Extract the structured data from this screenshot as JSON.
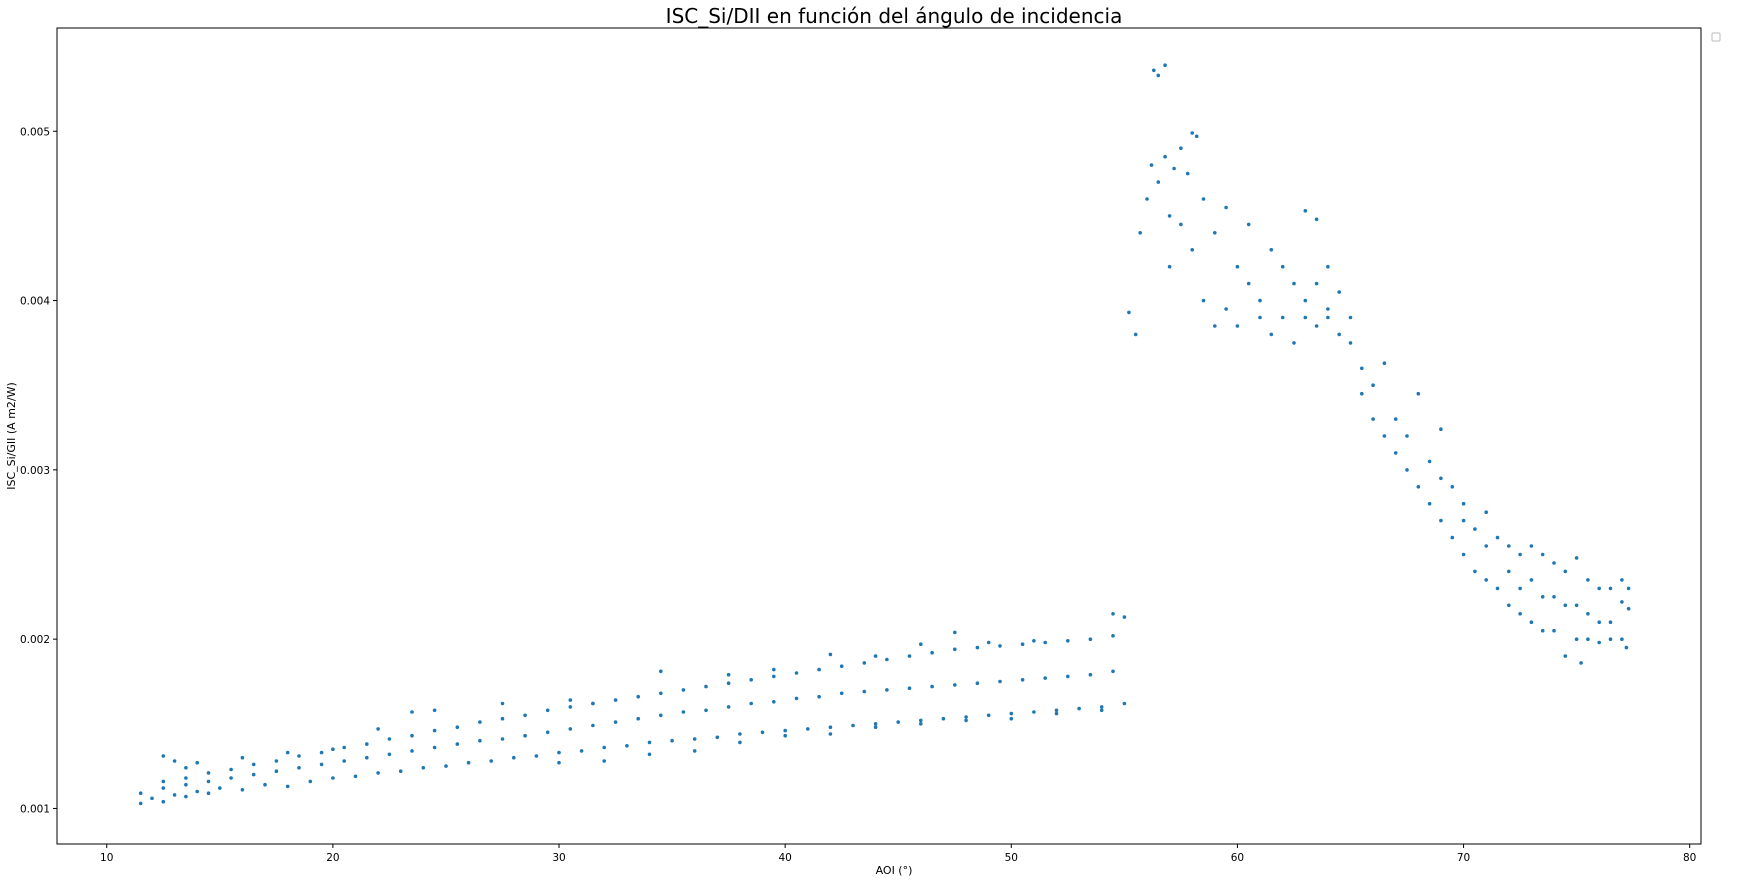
{
  "chart_data": {
    "type": "scatter",
    "title": "ISC_Si/DII en función del ángulo de incidencia",
    "xlabel": "AOI (°)",
    "ylabel": "ISC_Si/GII (A m2/W)",
    "xlim": [
      7.8,
      80.5
    ],
    "ylim": [
      0.00079,
      0.00561
    ],
    "xticks": [
      10,
      20,
      30,
      40,
      50,
      60,
      70,
      80
    ],
    "xtick_labels": [
      "10",
      "20",
      "30",
      "40",
      "50",
      "60",
      "70",
      "80"
    ],
    "yticks": [
      0.001,
      0.002,
      0.003,
      0.004,
      0.005
    ],
    "ytick_labels": [
      "0.001",
      "0.002",
      "0.003",
      "0.004",
      "0.005"
    ],
    "grid": false,
    "legend": "top-right (empty)",
    "marker_color": "#1f77b4",
    "series": [
      {
        "points": [
          [
            11.5,
            0.00103
          ],
          [
            12.0,
            0.00106
          ],
          [
            12.5,
            0.00104
          ],
          [
            13.0,
            0.00108
          ],
          [
            13.5,
            0.00107
          ],
          [
            14.0,
            0.0011
          ],
          [
            14.5,
            0.00109
          ],
          [
            15.0,
            0.00112
          ],
          [
            16.0,
            0.00111
          ],
          [
            17.0,
            0.00114
          ],
          [
            18.0,
            0.00113
          ],
          [
            19.0,
            0.00116
          ],
          [
            20.0,
            0.00118
          ],
          [
            21.0,
            0.00119
          ],
          [
            22.0,
            0.00121
          ],
          [
            23.0,
            0.00122
          ],
          [
            24.0,
            0.00124
          ],
          [
            25.0,
            0.00125
          ],
          [
            26.0,
            0.00127
          ],
          [
            27.0,
            0.00128
          ],
          [
            28.0,
            0.0013
          ],
          [
            29.0,
            0.00131
          ],
          [
            30.0,
            0.00133
          ],
          [
            31.0,
            0.00134
          ],
          [
            32.0,
            0.00136
          ],
          [
            33.0,
            0.00137
          ],
          [
            34.0,
            0.00139
          ],
          [
            35.0,
            0.0014
          ],
          [
            36.0,
            0.00141
          ],
          [
            37.0,
            0.00142
          ],
          [
            38.0,
            0.00144
          ],
          [
            39.0,
            0.00145
          ],
          [
            40.0,
            0.00146
          ],
          [
            41.0,
            0.00147
          ],
          [
            42.0,
            0.00148
          ],
          [
            43.0,
            0.00149
          ],
          [
            44.0,
            0.0015
          ],
          [
            45.0,
            0.00151
          ],
          [
            46.0,
            0.00152
          ],
          [
            47.0,
            0.00153
          ],
          [
            48.0,
            0.00154
          ],
          [
            49.0,
            0.00155
          ],
          [
            50.0,
            0.00156
          ],
          [
            51.0,
            0.00157
          ],
          [
            52.0,
            0.00158
          ],
          [
            53.0,
            0.00159
          ],
          [
            54.0,
            0.0016
          ],
          [
            55.0,
            0.00162
          ],
          [
            11.5,
            0.00109
          ],
          [
            12.5,
            0.00112
          ],
          [
            13.5,
            0.00114
          ],
          [
            14.5,
            0.00116
          ],
          [
            15.5,
            0.00118
          ],
          [
            16.5,
            0.0012
          ],
          [
            17.5,
            0.00122
          ],
          [
            18.5,
            0.00124
          ],
          [
            19.5,
            0.00126
          ],
          [
            20.5,
            0.00128
          ],
          [
            21.5,
            0.0013
          ],
          [
            22.5,
            0.00132
          ],
          [
            23.5,
            0.00134
          ],
          [
            24.5,
            0.00136
          ],
          [
            25.5,
            0.00138
          ],
          [
            26.5,
            0.0014
          ],
          [
            27.5,
            0.00141
          ],
          [
            28.5,
            0.00143
          ],
          [
            29.5,
            0.00145
          ],
          [
            30.5,
            0.00147
          ],
          [
            31.5,
            0.00149
          ],
          [
            32.5,
            0.00151
          ],
          [
            33.5,
            0.00153
          ],
          [
            34.5,
            0.00155
          ],
          [
            35.5,
            0.00157
          ],
          [
            36.5,
            0.00158
          ],
          [
            37.5,
            0.0016
          ],
          [
            38.5,
            0.00162
          ],
          [
            39.5,
            0.00163
          ],
          [
            40.5,
            0.00165
          ],
          [
            41.5,
            0.00166
          ],
          [
            42.5,
            0.00168
          ],
          [
            43.5,
            0.00169
          ],
          [
            44.5,
            0.0017
          ],
          [
            45.5,
            0.00171
          ],
          [
            46.5,
            0.00172
          ],
          [
            47.5,
            0.00173
          ],
          [
            48.5,
            0.00174
          ],
          [
            49.5,
            0.00175
          ],
          [
            50.5,
            0.00176
          ],
          [
            51.5,
            0.00177
          ],
          [
            52.5,
            0.00178
          ],
          [
            53.5,
            0.00179
          ],
          [
            54.5,
            0.00181
          ],
          [
            12.5,
            0.00116
          ],
          [
            13.5,
            0.00118
          ],
          [
            14.5,
            0.00121
          ],
          [
            15.5,
            0.00123
          ],
          [
            16.5,
            0.00126
          ],
          [
            17.5,
            0.00128
          ],
          [
            18.5,
            0.00131
          ],
          [
            19.5,
            0.00133
          ],
          [
            20.5,
            0.00136
          ],
          [
            21.5,
            0.00138
          ],
          [
            22.5,
            0.00141
          ],
          [
            23.5,
            0.00143
          ],
          [
            24.5,
            0.00146
          ],
          [
            25.5,
            0.00148
          ],
          [
            26.5,
            0.00151
          ],
          [
            27.5,
            0.00153
          ],
          [
            28.5,
            0.00155
          ],
          [
            29.5,
            0.00158
          ],
          [
            30.5,
            0.0016
          ],
          [
            31.5,
            0.00162
          ],
          [
            32.5,
            0.00164
          ],
          [
            33.5,
            0.00166
          ],
          [
            34.5,
            0.00168
          ],
          [
            35.5,
            0.0017
          ],
          [
            36.5,
            0.00172
          ],
          [
            37.5,
            0.00174
          ],
          [
            38.5,
            0.00176
          ],
          [
            39.5,
            0.00178
          ],
          [
            40.5,
            0.0018
          ],
          [
            41.5,
            0.00182
          ],
          [
            42.5,
            0.00184
          ],
          [
            43.5,
            0.00186
          ],
          [
            44.5,
            0.00188
          ],
          [
            45.5,
            0.0019
          ],
          [
            46.5,
            0.00192
          ],
          [
            47.5,
            0.00194
          ],
          [
            48.5,
            0.00195
          ],
          [
            49.5,
            0.00196
          ],
          [
            50.5,
            0.00197
          ],
          [
            51.5,
            0.00198
          ],
          [
            52.5,
            0.00199
          ],
          [
            53.5,
            0.002
          ],
          [
            54.5,
            0.00202
          ],
          [
            12.5,
            0.00131
          ],
          [
            13.0,
            0.00128
          ],
          [
            13.5,
            0.00124
          ],
          [
            14.0,
            0.00127
          ],
          [
            16.0,
            0.0013
          ],
          [
            18.0,
            0.00133
          ],
          [
            20.0,
            0.00135
          ],
          [
            22.0,
            0.00147
          ],
          [
            23.5,
            0.00157
          ],
          [
            24.5,
            0.00158
          ],
          [
            27.5,
            0.00162
          ],
          [
            30.5,
            0.00164
          ],
          [
            31.5,
            0.00162
          ],
          [
            34.5,
            0.00181
          ],
          [
            37.5,
            0.00179
          ],
          [
            39.5,
            0.00182
          ],
          [
            42.0,
            0.00191
          ],
          [
            44.0,
            0.0019
          ],
          [
            46.0,
            0.00197
          ],
          [
            47.5,
            0.00204
          ],
          [
            49.0,
            0.00198
          ],
          [
            51.0,
            0.00199
          ],
          [
            54.5,
            0.00215
          ],
          [
            55.0,
            0.00213
          ],
          [
            30.0,
            0.00127
          ],
          [
            32.0,
            0.00128
          ],
          [
            34.0,
            0.00132
          ],
          [
            36.0,
            0.00134
          ],
          [
            38.0,
            0.00139
          ],
          [
            40.0,
            0.00143
          ],
          [
            42.0,
            0.00144
          ],
          [
            44.0,
            0.00148
          ],
          [
            46.0,
            0.0015
          ],
          [
            48.0,
            0.00152
          ],
          [
            50.0,
            0.00153
          ],
          [
            52.0,
            0.00156
          ],
          [
            54.0,
            0.00158
          ],
          [
            55.2,
            0.00393
          ],
          [
            55.5,
            0.0038
          ],
          [
            55.7,
            0.0044
          ],
          [
            56.0,
            0.0046
          ],
          [
            56.3,
            0.00536
          ],
          [
            56.5,
            0.00533
          ],
          [
            56.8,
            0.00539
          ],
          [
            56.2,
            0.0048
          ],
          [
            56.5,
            0.0047
          ],
          [
            56.8,
            0.00485
          ],
          [
            57.0,
            0.0045
          ],
          [
            57.2,
            0.00478
          ],
          [
            57.5,
            0.0049
          ],
          [
            57.8,
            0.00475
          ],
          [
            58.0,
            0.00499
          ],
          [
            58.2,
            0.00497
          ],
          [
            57.0,
            0.0042
          ],
          [
            57.5,
            0.00445
          ],
          [
            58.0,
            0.0043
          ],
          [
            58.5,
            0.0046
          ],
          [
            59.0,
            0.0044
          ],
          [
            59.5,
            0.00455
          ],
          [
            60.0,
            0.0042
          ],
          [
            60.5,
            0.00445
          ],
          [
            58.5,
            0.004
          ],
          [
            59.0,
            0.00385
          ],
          [
            59.5,
            0.00395
          ],
          [
            60.0,
            0.00385
          ],
          [
            60.5,
            0.0041
          ],
          [
            61.0,
            0.004
          ],
          [
            61.5,
            0.0043
          ],
          [
            62.0,
            0.0042
          ],
          [
            61.0,
            0.0039
          ],
          [
            61.5,
            0.0038
          ],
          [
            62.0,
            0.0039
          ],
          [
            62.5,
            0.00375
          ],
          [
            63.0,
            0.0039
          ],
          [
            63.5,
            0.00385
          ],
          [
            64.0,
            0.0039
          ],
          [
            64.5,
            0.0038
          ],
          [
            62.5,
            0.0041
          ],
          [
            63.0,
            0.004
          ],
          [
            63.5,
            0.0041
          ],
          [
            64.0,
            0.00395
          ],
          [
            63.0,
            0.00453
          ],
          [
            63.5,
            0.00448
          ],
          [
            64.0,
            0.0042
          ],
          [
            64.5,
            0.00405
          ],
          [
            65.0,
            0.00375
          ],
          [
            65.0,
            0.0039
          ],
          [
            65.5,
            0.0036
          ],
          [
            65.5,
            0.00345
          ],
          [
            66.0,
            0.0035
          ],
          [
            66.0,
            0.0033
          ],
          [
            66.5,
            0.00363
          ],
          [
            66.5,
            0.0032
          ],
          [
            67.0,
            0.0033
          ],
          [
            67.0,
            0.0031
          ],
          [
            67.5,
            0.003
          ],
          [
            67.5,
            0.0032
          ],
          [
            68.0,
            0.00345
          ],
          [
            68.0,
            0.0029
          ],
          [
            68.5,
            0.00305
          ],
          [
            68.5,
            0.0028
          ],
          [
            69.0,
            0.00324
          ],
          [
            69.0,
            0.00295
          ],
          [
            69.0,
            0.0027
          ],
          [
            69.5,
            0.0029
          ],
          [
            69.5,
            0.0026
          ],
          [
            70.0,
            0.0028
          ],
          [
            70.0,
            0.0025
          ],
          [
            70.0,
            0.0027
          ],
          [
            70.5,
            0.00265
          ],
          [
            70.5,
            0.0024
          ],
          [
            71.0,
            0.00275
          ],
          [
            71.0,
            0.00255
          ],
          [
            71.0,
            0.00235
          ],
          [
            71.5,
            0.0026
          ],
          [
            71.5,
            0.0023
          ],
          [
            72.0,
            0.00255
          ],
          [
            72.0,
            0.0024
          ],
          [
            72.0,
            0.0022
          ],
          [
            72.5,
            0.0025
          ],
          [
            72.5,
            0.0023
          ],
          [
            72.5,
            0.00215
          ],
          [
            73.0,
            0.00255
          ],
          [
            73.0,
            0.00235
          ],
          [
            73.0,
            0.0021
          ],
          [
            73.5,
            0.0025
          ],
          [
            73.5,
            0.00225
          ],
          [
            73.5,
            0.00205
          ],
          [
            74.0,
            0.00245
          ],
          [
            74.0,
            0.00225
          ],
          [
            74.0,
            0.00205
          ],
          [
            74.5,
            0.0024
          ],
          [
            74.5,
            0.0022
          ],
          [
            74.5,
            0.0019
          ],
          [
            75.0,
            0.00248
          ],
          [
            75.0,
            0.0022
          ],
          [
            75.0,
            0.002
          ],
          [
            75.2,
            0.00186
          ],
          [
            75.5,
            0.00235
          ],
          [
            75.5,
            0.00215
          ],
          [
            75.5,
            0.002
          ],
          [
            76.0,
            0.0023
          ],
          [
            76.0,
            0.0021
          ],
          [
            76.0,
            0.00198
          ],
          [
            76.5,
            0.0023
          ],
          [
            76.5,
            0.0021
          ],
          [
            76.5,
            0.002
          ],
          [
            77.0,
            0.00235
          ],
          [
            77.0,
            0.00222
          ],
          [
            77.0,
            0.002
          ],
          [
            77.2,
            0.00195
          ],
          [
            77.3,
            0.0023
          ],
          [
            77.3,
            0.00218
          ]
        ]
      }
    ]
  }
}
